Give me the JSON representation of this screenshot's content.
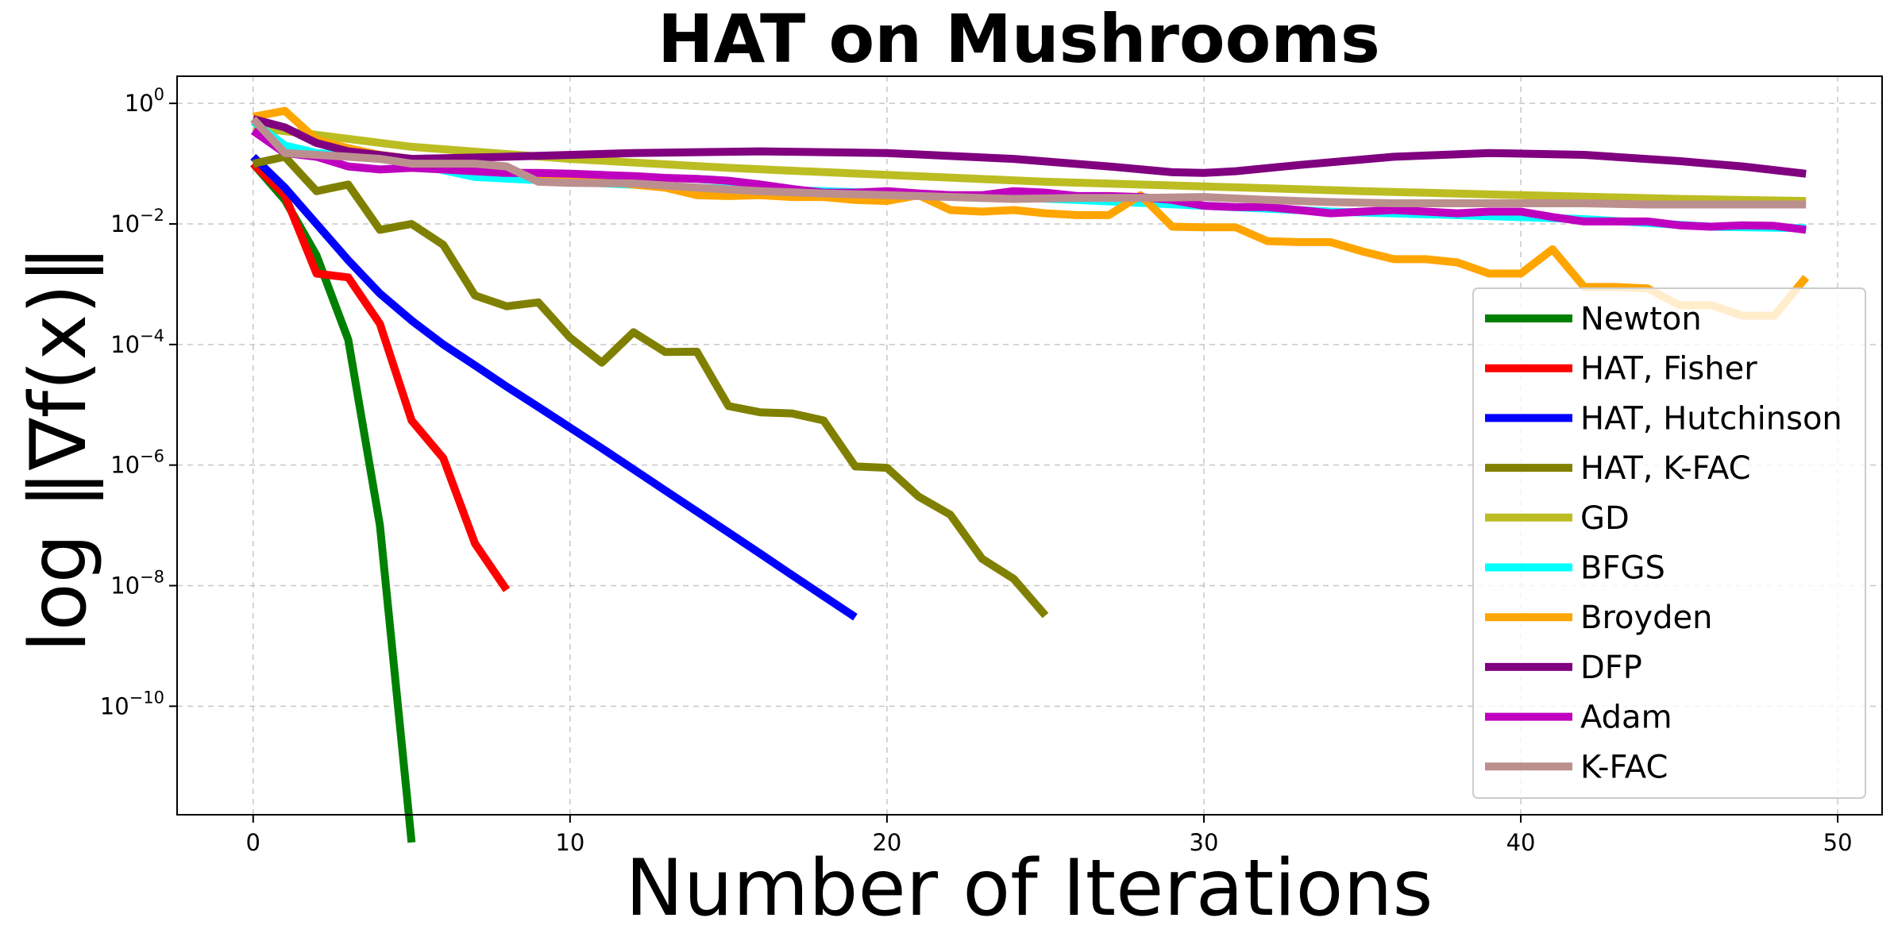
{
  "chart_data": {
    "type": "line",
    "title": "HAT on Mushrooms",
    "xlabel": "Number of Iterations",
    "ylabel": "log ‖∇f(x)‖",
    "xlim": [
      -2.4,
      51.4
    ],
    "ylim_log10": [
      -11.8,
      0.45
    ],
    "yscale": "log",
    "grid": true,
    "legend_position": "right",
    "x_ticks": [
      0,
      10,
      20,
      30,
      40,
      50
    ],
    "y_tick_exponents": [
      0,
      -2,
      -4,
      -6,
      -8,
      -10
    ],
    "series": [
      {
        "name": "Newton",
        "color": "#008000",
        "x": [
          0,
          1,
          2,
          3,
          4,
          5
        ],
        "y": [
          0.1,
          0.025,
          0.003,
          0.00012,
          1e-07,
          5.5e-13
        ]
      },
      {
        "name": "HAT, Fisher",
        "color": "#ff0000",
        "x": [
          0,
          1,
          2,
          3,
          4,
          5,
          6,
          7,
          8
        ],
        "y": [
          0.1,
          0.03,
          0.0015,
          0.0013,
          0.00022,
          5.5e-06,
          1.3e-06,
          5e-08,
          8.5e-09
        ]
      },
      {
        "name": "HAT, Hutchinson",
        "color": "#0000ff",
        "x": [
          0,
          1,
          2,
          3,
          4,
          5,
          6,
          7,
          8,
          9,
          10,
          11,
          12,
          13,
          14,
          15,
          16,
          17,
          18,
          19
        ],
        "y": [
          0.13,
          0.04,
          0.01,
          0.0025,
          0.0007,
          0.00025,
          0.0001,
          4.5e-05,
          2e-05,
          9.2e-06,
          4.2e-06,
          1.9e-06,
          8.5e-07,
          3.8e-07,
          1.7e-07,
          7.6e-08,
          3.4e-08,
          1.5e-08,
          6.7e-09,
          3e-09
        ]
      },
      {
        "name": "HAT, K-FAC",
        "color": "#808000",
        "x": [
          0,
          1,
          2,
          3,
          4,
          5,
          6,
          7,
          8,
          9,
          10,
          11,
          12,
          13,
          14,
          15,
          16,
          17,
          18,
          19,
          20,
          21,
          22,
          23,
          24,
          25
        ],
        "y": [
          0.1,
          0.13,
          0.035,
          0.045,
          0.008,
          0.01,
          0.0045,
          0.00065,
          0.00043,
          0.0005,
          0.00013,
          5e-05,
          0.00016,
          7.5e-05,
          7.6e-05,
          9.5e-06,
          7.5e-06,
          7.2e-06,
          5.5e-06,
          9.5e-07,
          9e-07,
          3e-07,
          1.5e-07,
          2.8e-08,
          1.3e-08,
          3.2e-09
        ]
      },
      {
        "name": "GD",
        "color": "#bcbd22",
        "x": [
          0,
          2,
          5,
          10,
          15,
          20,
          25,
          30,
          35,
          40,
          45,
          49
        ],
        "y": [
          0.4,
          0.3,
          0.19,
          0.12,
          0.085,
          0.065,
          0.05,
          0.042,
          0.035,
          0.03,
          0.026,
          0.024
        ]
      },
      {
        "name": "BFGS",
        "color": "#00ffff",
        "x": [
          0,
          1,
          2,
          4,
          7,
          10,
          14,
          18,
          22,
          26,
          30,
          34,
          38,
          42,
          46,
          49
        ],
        "y": [
          0.5,
          0.2,
          0.15,
          0.13,
          0.06,
          0.05,
          0.04,
          0.035,
          0.03,
          0.025,
          0.02,
          0.016,
          0.014,
          0.012,
          0.009,
          0.0085
        ]
      },
      {
        "name": "Broyden",
        "color": "#ffa500",
        "x": [
          0,
          1,
          2,
          3,
          4,
          5,
          6,
          7,
          8,
          9,
          10,
          11,
          12,
          13,
          14,
          15,
          16,
          17,
          18,
          19,
          20,
          21,
          22,
          23,
          24,
          25,
          26,
          27,
          28,
          29,
          30,
          31,
          32,
          33,
          34,
          35,
          36,
          37,
          38,
          39,
          40,
          41,
          42,
          43,
          44,
          45,
          46,
          47,
          48,
          49
        ],
        "y": [
          0.6,
          0.75,
          0.25,
          0.18,
          0.14,
          0.12,
          0.1,
          0.09,
          0.075,
          0.065,
          0.058,
          0.052,
          0.045,
          0.04,
          0.03,
          0.029,
          0.03,
          0.028,
          0.028,
          0.025,
          0.024,
          0.03,
          0.017,
          0.016,
          0.017,
          0.015,
          0.014,
          0.014,
          0.03,
          0.009,
          0.0088,
          0.0088,
          0.0052,
          0.005,
          0.005,
          0.0035,
          0.0026,
          0.0026,
          0.0023,
          0.0015,
          0.0015,
          0.0038,
          0.0009,
          0.0009,
          0.00085,
          0.00045,
          0.00045,
          0.0003,
          0.0003,
          0.0013
        ]
      },
      {
        "name": "DFP",
        "color": "#800080",
        "x": [
          0,
          1,
          2,
          3,
          5,
          8,
          12,
          16,
          20,
          24,
          27,
          29,
          30,
          31,
          33,
          36,
          39,
          42,
          45,
          47,
          49
        ],
        "y": [
          0.55,
          0.4,
          0.22,
          0.16,
          0.12,
          0.13,
          0.15,
          0.16,
          0.15,
          0.12,
          0.09,
          0.072,
          0.07,
          0.075,
          0.095,
          0.13,
          0.15,
          0.14,
          0.11,
          0.09,
          0.068
        ]
      },
      {
        "name": "Adam",
        "color": "#bf00bf",
        "x": [
          0,
          1,
          2,
          3,
          4,
          5,
          6,
          7,
          8,
          9,
          10,
          11,
          12,
          13,
          14,
          15,
          16,
          17,
          18,
          19,
          20,
          21,
          22,
          23,
          24,
          25,
          26,
          27,
          28,
          29,
          30,
          31,
          32,
          33,
          34,
          35,
          36,
          37,
          38,
          39,
          40,
          41,
          42,
          43,
          44,
          45,
          46,
          47,
          48,
          49
        ],
        "y": [
          0.35,
          0.15,
          0.13,
          0.09,
          0.08,
          0.085,
          0.08,
          0.075,
          0.07,
          0.07,
          0.068,
          0.065,
          0.062,
          0.058,
          0.056,
          0.052,
          0.045,
          0.038,
          0.033,
          0.033,
          0.035,
          0.032,
          0.03,
          0.03,
          0.035,
          0.033,
          0.029,
          0.029,
          0.028,
          0.025,
          0.02,
          0.019,
          0.019,
          0.017,
          0.015,
          0.016,
          0.017,
          0.016,
          0.015,
          0.016,
          0.016,
          0.013,
          0.011,
          0.011,
          0.011,
          0.0095,
          0.009,
          0.0095,
          0.0093,
          0.008
        ]
      },
      {
        "name": "K-FAC",
        "color": "#bc8f8f",
        "x": [
          0,
          1,
          2,
          3,
          4,
          5,
          6,
          7,
          8,
          9,
          10,
          12,
          14,
          16,
          18,
          20,
          22,
          24,
          26,
          28,
          30,
          32,
          34,
          36,
          38,
          40,
          42,
          44,
          46,
          49
        ],
        "y": [
          0.55,
          0.15,
          0.14,
          0.13,
          0.12,
          0.1,
          0.1,
          0.1,
          0.09,
          0.05,
          0.048,
          0.047,
          0.04,
          0.035,
          0.032,
          0.03,
          0.028,
          0.026,
          0.027,
          0.027,
          0.028,
          0.025,
          0.023,
          0.022,
          0.022,
          0.022,
          0.022,
          0.021,
          0.021,
          0.021
        ]
      }
    ]
  }
}
